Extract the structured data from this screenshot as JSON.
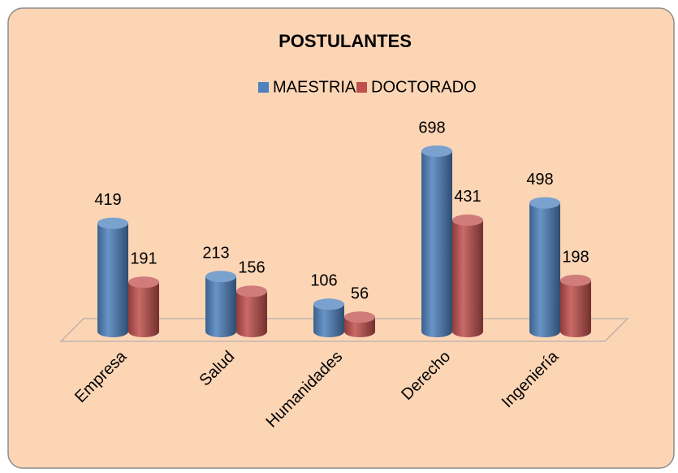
{
  "chart_data": {
    "type": "bar3d-cylinder",
    "title": "POSTULANTES",
    "categories": [
      "Empresa",
      "Salud",
      "Humanidades",
      "Derecho",
      "Ingeniería"
    ],
    "series": [
      {
        "name": "MAESTRIA",
        "color": "#4f81bd",
        "values": [
          419,
          213,
          106,
          698,
          498
        ]
      },
      {
        "name": "DOCTORADO",
        "color": "#c0504d",
        "values": [
          191,
          156,
          56,
          431,
          198
        ]
      }
    ],
    "legend": "top",
    "background": "#fcd5b5"
  }
}
